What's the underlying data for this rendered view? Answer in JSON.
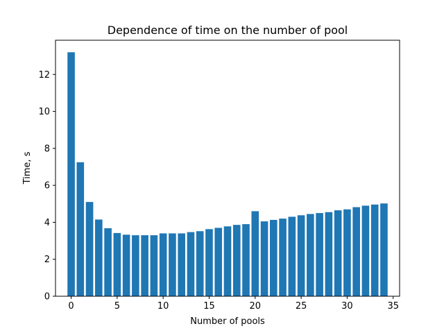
{
  "chart_data": {
    "type": "bar",
    "title": "Dependence of time on the number of pool",
    "xlabel": "Number of pools",
    "ylabel": "Time, s",
    "bar_color": "#1f77b4",
    "xlim": [
      -1.7,
      35.7
    ],
    "ylim": [
      0,
      13.85
    ],
    "xticks": [
      0,
      5,
      10,
      15,
      20,
      25,
      30,
      35
    ],
    "yticks": [
      0,
      2,
      4,
      6,
      8,
      10,
      12
    ],
    "grid": false,
    "legend": "none",
    "x": [
      0,
      1,
      2,
      3,
      4,
      5,
      6,
      7,
      8,
      9,
      10,
      11,
      12,
      13,
      14,
      15,
      16,
      17,
      18,
      19,
      20,
      21,
      22,
      23,
      24,
      25,
      26,
      27,
      28,
      29,
      30,
      31,
      32,
      33,
      34
    ],
    "values": [
      13.2,
      7.25,
      5.1,
      4.15,
      3.68,
      3.42,
      3.33,
      3.3,
      3.3,
      3.3,
      3.4,
      3.4,
      3.4,
      3.47,
      3.52,
      3.63,
      3.7,
      3.78,
      3.86,
      3.9,
      4.6,
      4.05,
      4.13,
      4.2,
      4.3,
      4.38,
      4.45,
      4.5,
      4.55,
      4.65,
      4.7,
      4.82,
      4.9,
      4.96,
      5.02
    ]
  }
}
